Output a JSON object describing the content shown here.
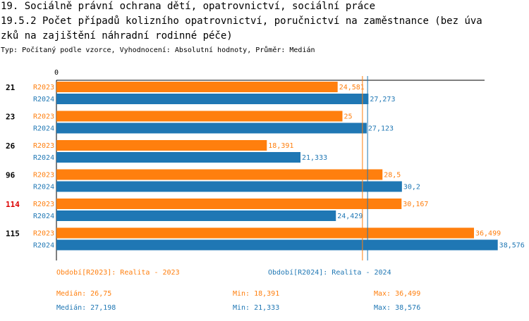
{
  "header": {
    "title_line1": "19. Sociálně právní ochrana dětí, opatrovnictví, sociální práce",
    "title_line2": "19.5.2 Počet případů kolizního opatrovnictví, poručnictví na zaměstnance (bez úva",
    "title_line3": "zků na zajištění náhradní rodinné péče)",
    "subtitle": "Typ: Počítaný podle vzorce, Vyhodnocení: Absolutní hodnoty, Průměr: Medián"
  },
  "chart_data": {
    "type": "bar",
    "orientation": "horizontal",
    "axis_zero_label": "0",
    "xlim": [
      0,
      41
    ],
    "categories": [
      "21",
      "23",
      "26",
      "96",
      "114",
      "115"
    ],
    "highlighted_category": "114",
    "series": [
      {
        "name": "R2023",
        "color": "#ff7f0e",
        "values": [
          24.581,
          25,
          18.391,
          28.5,
          30.167,
          36.499
        ],
        "labels": [
          "24,581",
          "25",
          "18,391",
          "28,5",
          "30,167",
          "36,499"
        ]
      },
      {
        "name": "R2024",
        "color": "#1f77b4",
        "values": [
          27.273,
          27.123,
          21.333,
          30.2,
          24.429,
          38.576
        ],
        "labels": [
          "27,273",
          "27,123",
          "21,333",
          "30,2",
          "24,429",
          "38,576"
        ]
      }
    ],
    "median_lines": [
      26.75,
      27.198
    ]
  },
  "legend": {
    "period_2023": "Období[R2023]: Realita - 2023",
    "period_2024": "Období[R2024]: Realita - 2024",
    "stats_2023": {
      "median": "Medián: 26,75",
      "min": "Min: 18,391",
      "max": "Max: 36,499"
    },
    "stats_2024": {
      "median": "Medián: 27,198",
      "min": "Min: 21,333",
      "max": "Max: 38,576"
    }
  },
  "colors": {
    "r2023": "#ff7f0e",
    "r2024": "#1f77b4",
    "highlight": "#dd0000"
  }
}
